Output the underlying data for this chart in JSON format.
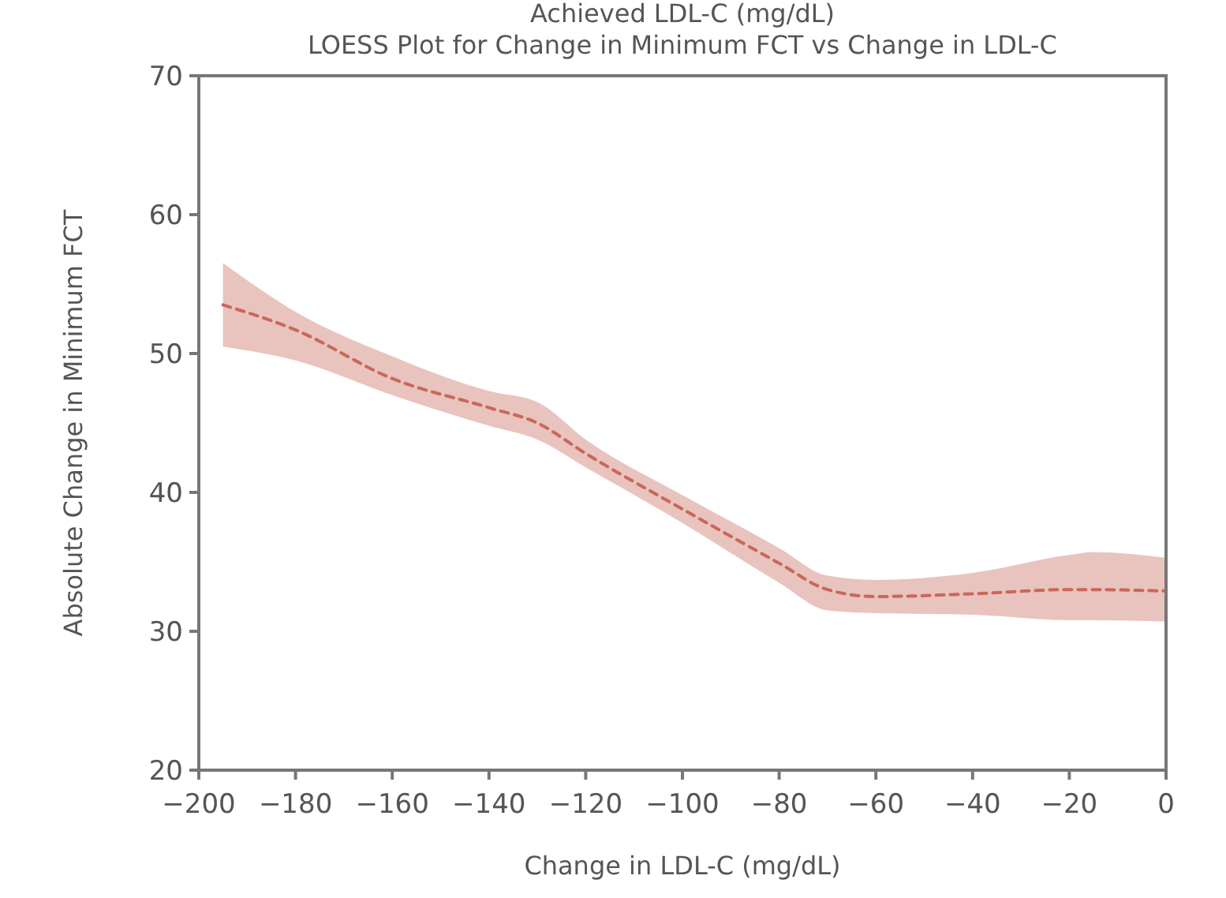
{
  "chart_data": {
    "type": "line",
    "title": "Achieved LDL-C (mg/dL)",
    "subtitle": "LOESS Plot for Change in Minimum FCT vs Change in LDL-C",
    "xlabel": "Change in LDL-C (mg/dL)",
    "ylabel": "Absolute Change in Minimum FCT",
    "xlim": [
      -200,
      0
    ],
    "xticks": [
      -200,
      -180,
      -160,
      -140,
      -120,
      -100,
      -80,
      -60,
      -40,
      -20,
      0
    ],
    "ylim": [
      20,
      70
    ],
    "yticks": [
      20,
      30,
      40,
      50,
      60,
      70
    ],
    "grid": false,
    "line_style": "dashed",
    "series": [
      {
        "color": "#c8685a",
        "x": [
          -195,
          -180,
          -160,
          -140,
          -130,
          -120,
          -100,
          -80,
          -70,
          -60,
          -40,
          -20,
          -15,
          0
        ],
        "values": [
          53.5,
          51.7,
          48.2,
          46.1,
          45,
          42.8,
          38.8,
          34.9,
          33,
          32.5,
          32.7,
          33,
          33,
          32.9
        ],
        "lower": [
          50.5,
          49.5,
          47,
          44.8,
          43.8,
          41.8,
          37.8,
          33.5,
          31.5,
          31.3,
          31.2,
          30.8,
          30.8,
          30.7
        ],
        "upper": [
          56.5,
          53,
          49.8,
          47.3,
          46.5,
          43.8,
          39.8,
          36,
          34,
          33.7,
          34.2,
          35.5,
          35.7,
          35.3
        ]
      }
    ]
  }
}
